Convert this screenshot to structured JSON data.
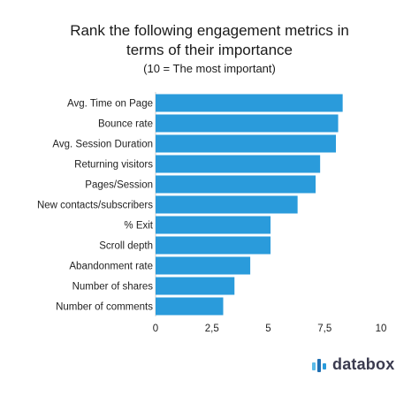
{
  "chart_data": {
    "type": "bar",
    "orientation": "horizontal",
    "title_lines": [
      "Rank the following engagement metrics in",
      "terms of their importance"
    ],
    "subtitle": "(10 = The most important)",
    "categories": [
      "Avg. Time on Page",
      "Bounce rate",
      "Avg. Session Duration",
      "Returning visitors",
      "Pages/Session",
      "New contacts/subscribers",
      "% Exit",
      "Scroll depth",
      "Abandonment rate",
      "Number of shares",
      "Number of comments"
    ],
    "values": [
      8.3,
      8.1,
      8.0,
      7.3,
      7.1,
      6.3,
      5.1,
      5.1,
      4.2,
      3.5,
      3.0
    ],
    "xlim": [
      0,
      10
    ],
    "xticks": [
      0,
      2.5,
      5,
      7.5,
      10
    ],
    "xtick_labels": [
      "0",
      "2,5",
      "5",
      "7,5",
      "10"
    ],
    "bar_color": "#2a9bdb",
    "grid": false,
    "legend": "none"
  },
  "brand": {
    "name": "databox",
    "colors": [
      "#2a9bdb",
      "#1f6fb2",
      "#5bbbe8"
    ]
  }
}
